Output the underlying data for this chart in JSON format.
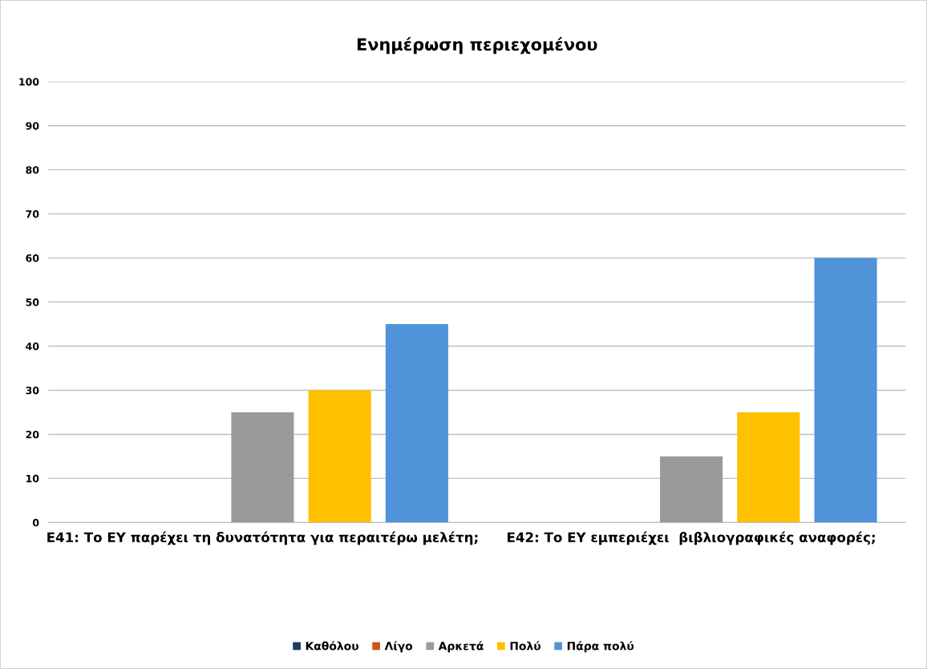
{
  "chart_data": {
    "type": "bar",
    "title": "Ενημέρωση περιεχομένου",
    "categories": [
      "Ε41: Το ΕΥ παρέχει τη δυνατότητα για περαιτέρω μελέτη;",
      "Ε42: Το ΕΥ εμπεριέχει  βιβλιογραφικές αναφορές;"
    ],
    "series": [
      {
        "name": "Καθόλου",
        "color": "#203864",
        "values": [
          0,
          0
        ]
      },
      {
        "name": "Λίγο",
        "color": "#c55a11",
        "values": [
          0,
          0
        ]
      },
      {
        "name": "Αρκετά",
        "color": "#9a9a9a",
        "values": [
          25,
          15
        ]
      },
      {
        "name": "Πολύ",
        "color": "#ffc000",
        "values": [
          30,
          25
        ]
      },
      {
        "name": "Πάρα πολύ",
        "color": "#4f94d8",
        "values": [
          45,
          60
        ]
      }
    ],
    "ylim": [
      0,
      100
    ],
    "yticks": [
      0,
      10,
      20,
      30,
      40,
      50,
      60,
      70,
      80,
      90,
      100
    ],
    "grid": "y",
    "legend": "bottom"
  }
}
